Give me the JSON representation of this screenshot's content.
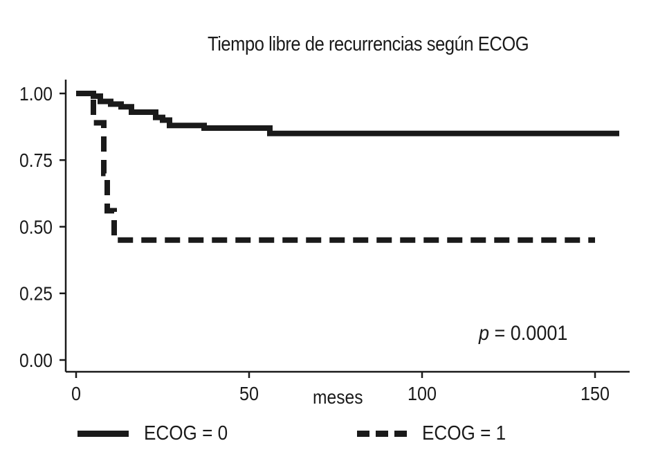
{
  "chart_data": {
    "type": "line",
    "title": "Tiempo libre de recurrencias según ECOG",
    "xlabel": "meses",
    "ylabel": "",
    "xlim": [
      0,
      160
    ],
    "ylim": [
      0,
      1
    ],
    "x_ticks": [
      0,
      50,
      100,
      150
    ],
    "x_tick_labels": [
      "0",
      "50",
      "100",
      "150"
    ],
    "y_ticks": [
      0,
      0.25,
      0.5,
      0.75,
      1.0
    ],
    "y_tick_labels": [
      "0.00",
      "0.25",
      "0.50",
      "0.75",
      "1.00"
    ],
    "grid": false,
    "legend_position": "bottom",
    "annotation": {
      "symbol": "p",
      "text": " = 0.0001"
    },
    "series": [
      {
        "name": "ECOG = 0",
        "style": "solid",
        "color": "#1a1a1a",
        "x": [
          0,
          5,
          7,
          10,
          13,
          16,
          23,
          25,
          27,
          37,
          56,
          157
        ],
        "y": [
          1.0,
          0.99,
          0.97,
          0.96,
          0.95,
          0.93,
          0.91,
          0.9,
          0.88,
          0.87,
          0.85,
          0.85
        ]
      },
      {
        "name": "ECOG = 1",
        "style": "dashed",
        "color": "#1a1a1a",
        "x": [
          0,
          5,
          8,
          9,
          11,
          150
        ],
        "y": [
          1.0,
          0.89,
          0.7,
          0.56,
          0.45,
          0.45
        ]
      }
    ]
  }
}
